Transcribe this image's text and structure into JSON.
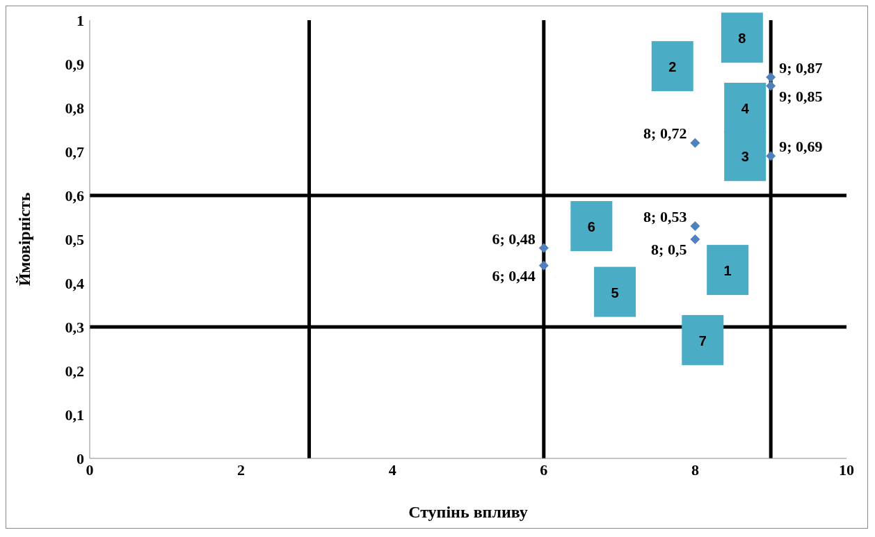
{
  "chart_data": {
    "type": "scatter",
    "xlabel": "Ступінь впливу",
    "ylabel": "Ймовірність",
    "x": [
      6,
      6,
      8,
      8,
      8,
      9,
      9,
      9
    ],
    "series": [
      {
        "color": "#4f81bd",
        "values": [
          0.48,
          0.44,
          0.72,
          0.53,
          0.5,
          0.87,
          0.85,
          0.69
        ],
        "value_labels": [
          "6; 0,48",
          "6; 0,44",
          "8; 0,72",
          "8; 0,53",
          "8; 0,5",
          "9; 0,87",
          "9; 0,85",
          "9; 0,69"
        ]
      }
    ],
    "marker": "diamond",
    "grid": false,
    "legend": false,
    "xlim": [
      0,
      10
    ],
    "xticks": [
      0,
      2,
      4,
      6,
      8,
      10
    ],
    "ylim": [
      0,
      1
    ],
    "yticks": [
      0,
      {
        "value": 0.1,
        "label": "0,1"
      },
      {
        "value": 0.2,
        "label": "0,2"
      },
      {
        "value": 0.3,
        "label": "0,3"
      },
      {
        "value": 0.4,
        "label": "0,4"
      },
      {
        "value": 0.5,
        "label": "0,5"
      },
      {
        "value": 0.6,
        "label": "0,6"
      },
      {
        "value": 0.7,
        "label": "0,7"
      },
      {
        "value": 0.8,
        "label": "0,8"
      },
      {
        "value": 0.9,
        "label": "0,9"
      },
      1
    ],
    "ref_lines": [
      {
        "axis": "x",
        "value": 2.9,
        "color": "#000000"
      },
      {
        "axis": "x",
        "value": 6,
        "color": "#000000"
      },
      {
        "axis": "x",
        "value": 9,
        "color": "#000000"
      },
      {
        "axis": "y",
        "value": 0.6,
        "color": "#000000"
      },
      {
        "axis": "y",
        "value": 0.3,
        "color": "#000000"
      }
    ],
    "annotations": [
      "8",
      "2",
      "4",
      "3",
      "6",
      "1",
      "5",
      "7"
    ]
  }
}
